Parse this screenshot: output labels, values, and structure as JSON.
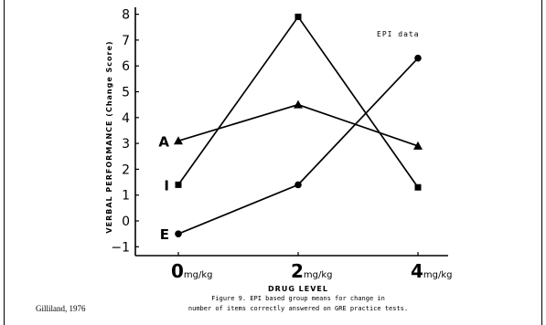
{
  "chart_data": {
    "type": "line",
    "ylabel": "VERBAL PERFORMANCE (Change Score)",
    "xlabel": "DRUG LEVEL",
    "x_ticks": [
      {
        "value": "0",
        "unit": "mg/kg"
      },
      {
        "value": "2",
        "unit": "mg/kg"
      },
      {
        "value": "4",
        "unit": "mg/kg"
      }
    ],
    "y_ticks": [
      "8",
      "7",
      "6",
      "5",
      "4",
      "3",
      "2",
      "1",
      "0",
      "−1"
    ],
    "ylim": [
      -1,
      8
    ],
    "legend_note": "EPI data",
    "series": [
      {
        "name": "A",
        "marker": "triangle",
        "values": [
          3.1,
          4.5,
          2.9
        ]
      },
      {
        "name": "I",
        "marker": "square",
        "values": [
          1.4,
          7.9,
          1.3
        ]
      },
      {
        "name": "E",
        "marker": "circle",
        "values": [
          -0.5,
          1.4,
          6.3
        ]
      }
    ]
  },
  "credit": "Gilliland, 1976",
  "caption": {
    "line1": "Figure 9.  EPI based group means for change in",
    "line2": "number of items correctly answered on GRE practice tests."
  }
}
